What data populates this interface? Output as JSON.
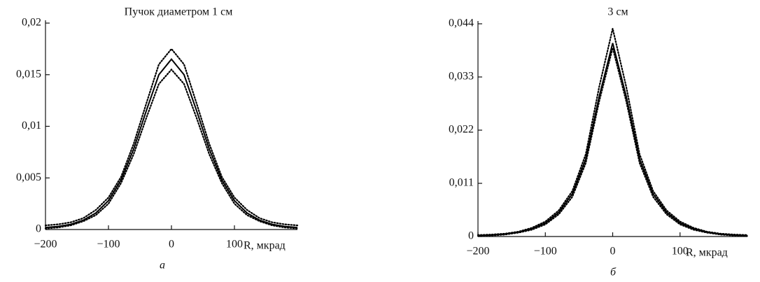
{
  "chart_data": [
    {
      "type": "line",
      "title": "Пучок диаметром 1 см",
      "x_label": "R, мкрад",
      "sublabel": "а",
      "x": [
        -200,
        -180,
        -160,
        -140,
        -120,
        -100,
        -80,
        -60,
        -40,
        -20,
        0,
        20,
        40,
        60,
        80,
        100,
        120,
        140,
        160,
        180,
        200
      ],
      "series": [
        {
          "color": "#000000",
          "style": "solid",
          "values": [
            0.0002,
            0.0003,
            0.0005,
            0.0009,
            0.0016,
            0.0028,
            0.0048,
            0.0078,
            0.0115,
            0.015,
            0.0165,
            0.015,
            0.0115,
            0.0078,
            0.0048,
            0.0028,
            0.0016,
            0.0009,
            0.0005,
            0.0003,
            0.0002
          ]
        },
        {
          "color": "#000000",
          "style": "dotted",
          "values": [
            0.0004,
            0.0005,
            0.0007,
            0.0011,
            0.0019,
            0.0031,
            0.0051,
            0.0083,
            0.0122,
            0.016,
            0.0175,
            0.016,
            0.0122,
            0.0083,
            0.0051,
            0.0031,
            0.0019,
            0.0011,
            0.0007,
            0.0005,
            0.0004
          ]
        },
        {
          "color": "#000000",
          "style": "dotted",
          "values": [
            0.0001,
            0.0002,
            0.0004,
            0.0008,
            0.0014,
            0.0025,
            0.0045,
            0.0073,
            0.0108,
            0.0141,
            0.0155,
            0.0141,
            0.0108,
            0.0073,
            0.0045,
            0.0025,
            0.0014,
            0.0008,
            0.0004,
            0.0002,
            0.0001
          ]
        }
      ],
      "xlim": [
        -200,
        200
      ],
      "xticks": [
        {
          "value": -200,
          "label": "−200"
        },
        {
          "value": -100,
          "label": "−100"
        },
        0,
        100
      ],
      "ylim": [
        0,
        0.02
      ],
      "yticks": [
        0,
        {
          "value": 0.005,
          "label": "0,005"
        },
        {
          "value": 0.01,
          "label": "0,01"
        },
        {
          "value": 0.015,
          "label": "0,015"
        },
        {
          "value": 0.02,
          "label": "0,02"
        }
      ]
    },
    {
      "type": "line",
      "title": "3 см",
      "x_label": "R, мкрад",
      "sublabel": "б",
      "x": [
        -200,
        -180,
        -160,
        -140,
        -120,
        -100,
        -80,
        -60,
        -40,
        -20,
        0,
        20,
        40,
        60,
        80,
        100,
        120,
        140,
        160,
        180,
        200
      ],
      "series": [
        {
          "color": "#000000",
          "style": "solid",
          "values": [
            0.0002,
            0.0003,
            0.0005,
            0.0009,
            0.0016,
            0.0028,
            0.005,
            0.0088,
            0.016,
            0.029,
            0.04,
            0.029,
            0.016,
            0.0088,
            0.005,
            0.0028,
            0.0016,
            0.0009,
            0.0005,
            0.0003,
            0.0002
          ]
        },
        {
          "color": "#000000",
          "style": "dotted",
          "values": [
            0.0003,
            0.0004,
            0.0006,
            0.001,
            0.0018,
            0.0031,
            0.0054,
            0.0094,
            0.017,
            0.031,
            0.043,
            0.031,
            0.017,
            0.0094,
            0.0054,
            0.0031,
            0.0018,
            0.001,
            0.0006,
            0.0004,
            0.0003
          ]
        },
        {
          "color": "#000000",
          "style": "dotted",
          "values": [
            0.0001,
            0.0002,
            0.0004,
            0.0008,
            0.0014,
            0.0025,
            0.0046,
            0.0082,
            0.0152,
            0.028,
            0.039,
            0.028,
            0.0152,
            0.0082,
            0.0046,
            0.0025,
            0.0014,
            0.0008,
            0.0004,
            0.0002,
            0.0001
          ]
        }
      ],
      "xlim": [
        -200,
        200
      ],
      "xticks": [
        {
          "value": -200,
          "label": "−200"
        },
        {
          "value": -100,
          "label": "−100"
        },
        0,
        100
      ],
      "ylim": [
        0,
        0.044
      ],
      "yticks": [
        0,
        {
          "value": 0.011,
          "label": "0,011"
        },
        {
          "value": 0.022,
          "label": "0,022"
        },
        {
          "value": 0.033,
          "label": "0,033"
        },
        {
          "value": 0.044,
          "label": "0,044"
        }
      ]
    }
  ]
}
